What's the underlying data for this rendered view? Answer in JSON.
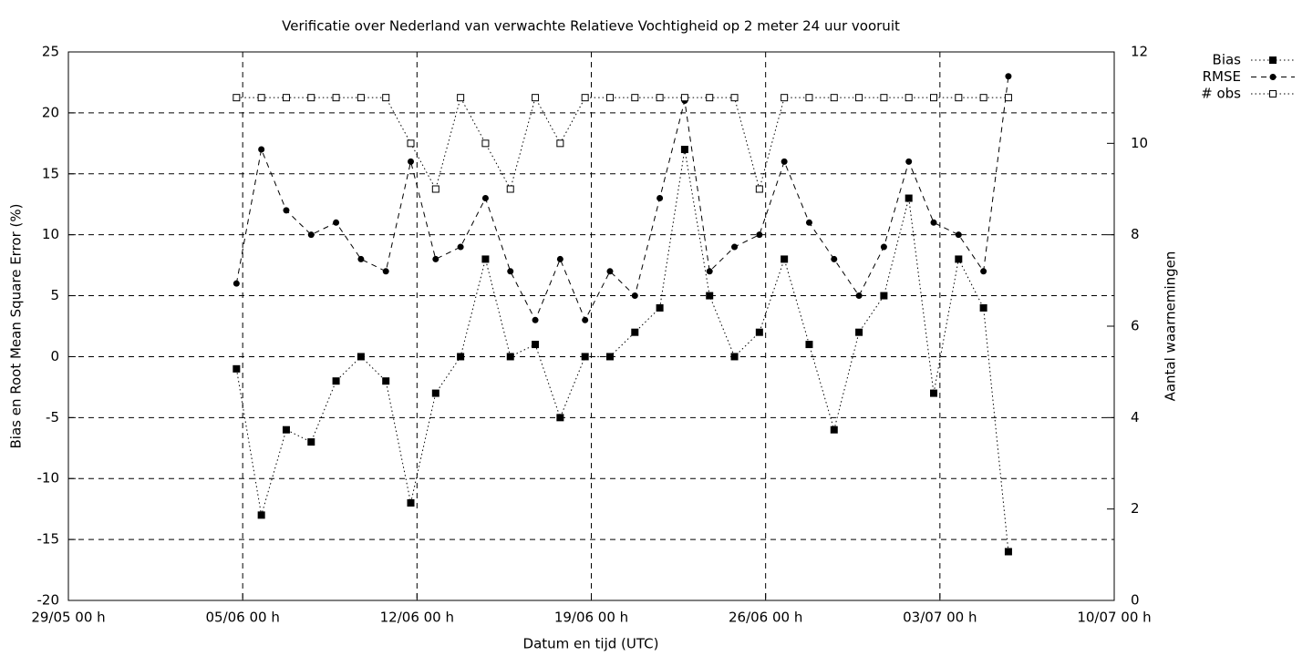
{
  "chart_data": {
    "type": "line",
    "title": "Verificatie over Nederland van verwachte Relatieve Vochtigheid op 2 meter 24 uur vooruit",
    "xlabel": "Datum en tijd (UTC)",
    "ylabel": "Bias en Root Mean Square Error (%)",
    "y2label": "Aantal waarnemingen",
    "x": [
      6.75,
      7.75,
      8.75,
      9.75,
      10.75,
      11.75,
      12.75,
      13.75,
      14.75,
      15.75,
      16.75,
      17.75,
      18.75,
      19.75,
      20.75,
      21.75,
      22.75,
      23.75,
      24.75,
      25.75,
      26.75,
      27.75,
      28.75,
      29.75,
      30.75,
      31.75,
      32.75,
      33.75,
      34.75,
      35.75,
      36.75,
      37.75
    ],
    "series": [
      {
        "name": "Bias",
        "color": "#000000",
        "line_style": "dotted",
        "marker": "filled-square",
        "values": [
          -1,
          -13,
          -6,
          -7,
          -2,
          0,
          -2,
          -12,
          -3,
          0,
          8,
          0,
          1,
          -5,
          0,
          0,
          2,
          4,
          17,
          5,
          0,
          2,
          8,
          1,
          -6,
          2,
          5,
          13,
          -3,
          8,
          4,
          -16
        ]
      },
      {
        "name": "RMSE",
        "color": "#000000",
        "line_style": "dashed",
        "marker": "filled-circle",
        "values": [
          6,
          17,
          12,
          10,
          11,
          8,
          7,
          16,
          8,
          9,
          13,
          7,
          3,
          8,
          3,
          7,
          5,
          13,
          21,
          7,
          9,
          10,
          16,
          11,
          8,
          5,
          9,
          16,
          11,
          10,
          7,
          23
        ]
      },
      {
        "name": "# obs",
        "color": "#000000",
        "line_style": "dotted",
        "marker": "open-square",
        "axis": "y2",
        "values": [
          11,
          11,
          11,
          11,
          11,
          11,
          11,
          10,
          9,
          11,
          10,
          9,
          11,
          10,
          11,
          11,
          11,
          11,
          11,
          11,
          11,
          9,
          11,
          11,
          11,
          11,
          11,
          11,
          11,
          11,
          11,
          11
        ]
      }
    ],
    "xlim": [
      0,
      42
    ],
    "xticks": [
      {
        "value": 0,
        "label": "29/05 00 h"
      },
      {
        "value": 7,
        "label": "05/06 00 h"
      },
      {
        "value": 14,
        "label": "12/06 00 h"
      },
      {
        "value": 21,
        "label": "19/06 00 h"
      },
      {
        "value": 28,
        "label": "26/06 00 h"
      },
      {
        "value": 35,
        "label": "03/07 00 h"
      },
      {
        "value": 42,
        "label": "10/07 00 h"
      }
    ],
    "ylim": [
      -20,
      25
    ],
    "yticks": [
      -20,
      -15,
      -10,
      -5,
      0,
      5,
      10,
      15,
      20,
      25
    ],
    "y2lim": [
      0,
      12
    ],
    "y2ticks": [
      0,
      2,
      4,
      6,
      8,
      10,
      12
    ],
    "grid": true,
    "legend": "outside-top-right"
  }
}
